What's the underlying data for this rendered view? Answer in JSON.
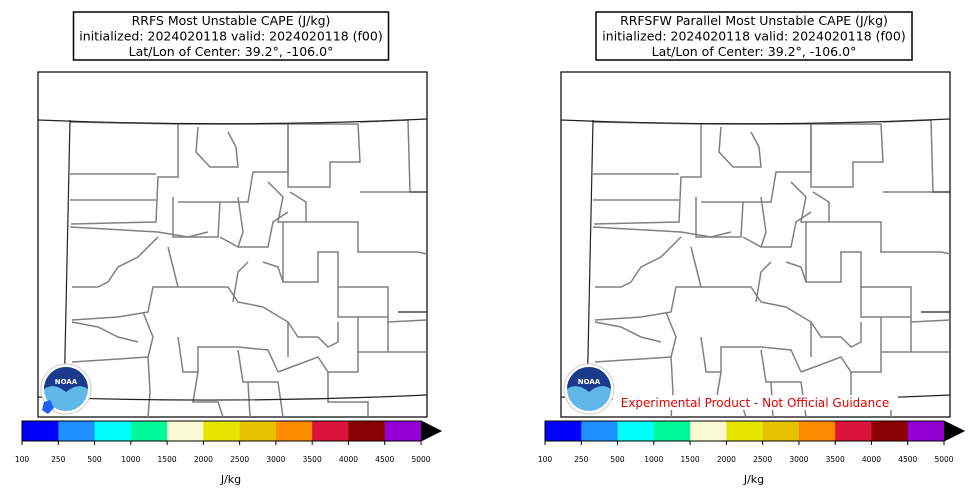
{
  "panels": [
    {
      "title_lines": [
        "RRFS Most Unstable CAPE (J/kg)",
        "initialized: 2024020118 valid: 2024020118 (f00)",
        "Lat/Lon of Center: 39.2°, -106.0°"
      ],
      "colorbar": {
        "label": "J/kg",
        "ticks": [
          100,
          250,
          500,
          1000,
          1500,
          2000,
          2500,
          3000,
          3500,
          4000,
          4500,
          5000
        ],
        "colors": [
          "#0000ff",
          "#1e90ff",
          "#00ffff",
          "#00fa9a",
          "#fafad2",
          "#e6e600",
          "#e6c200",
          "#ff8c00",
          "#dc143c",
          "#8b0000",
          "#9400d3"
        ]
      }
    },
    {
      "title_lines": [
        "RRFSFW Parallel Most Unstable CAPE (J/kg)",
        "initialized: 2024020118 valid: 2024020118 (f00)",
        "Lat/Lon of Center: 39.2°, -106.0°"
      ],
      "colorbar": {
        "label": "J/kg",
        "ticks": [
          100,
          250,
          500,
          1000,
          1500,
          2000,
          2500,
          3000,
          3500,
          4000,
          4500,
          5000
        ],
        "colors": [
          "#0000ff",
          "#1e90ff",
          "#00ffff",
          "#00fa9a",
          "#fafad2",
          "#e6e600",
          "#e6c200",
          "#ff8c00",
          "#dc143c",
          "#8b0000",
          "#9400d3"
        ]
      },
      "annotation": "Experimental Product - Not Official Guidance"
    }
  ]
}
